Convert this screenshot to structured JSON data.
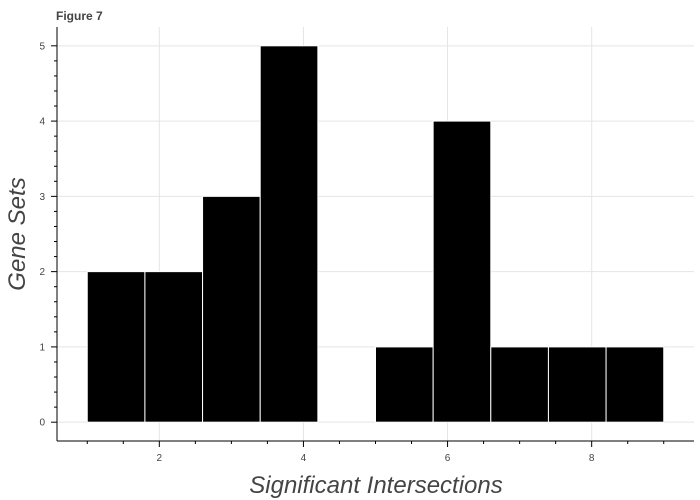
{
  "chart_data": {
    "type": "bar",
    "title": "Figure 7",
    "xlabel": "Significant Intersections",
    "ylabel": "Gene Sets",
    "bins": [
      {
        "start": 1.0,
        "end": 1.8,
        "value": 2
      },
      {
        "start": 1.8,
        "end": 2.6,
        "value": 2
      },
      {
        "start": 2.6,
        "end": 3.4,
        "value": 3
      },
      {
        "start": 3.4,
        "end": 4.2,
        "value": 5
      },
      {
        "start": 4.2,
        "end": 5.0,
        "value": 0
      },
      {
        "start": 5.0,
        "end": 5.8,
        "value": 1
      },
      {
        "start": 5.8,
        "end": 6.6,
        "value": 4
      },
      {
        "start": 6.6,
        "end": 7.4,
        "value": 1
      },
      {
        "start": 7.4,
        "end": 8.2,
        "value": 1
      },
      {
        "start": 8.2,
        "end": 9.0,
        "value": 1
      }
    ],
    "xticks": [
      "2",
      "4",
      "6",
      "8"
    ],
    "yticks": [
      "0",
      "1",
      "2",
      "3",
      "4",
      "5"
    ],
    "xlim": [
      0.58,
      9.42
    ],
    "ylim": [
      -0.25,
      5.25
    ],
    "grid": true,
    "bar_color": "#000000",
    "bar_edge_color": "#ffffff"
  }
}
